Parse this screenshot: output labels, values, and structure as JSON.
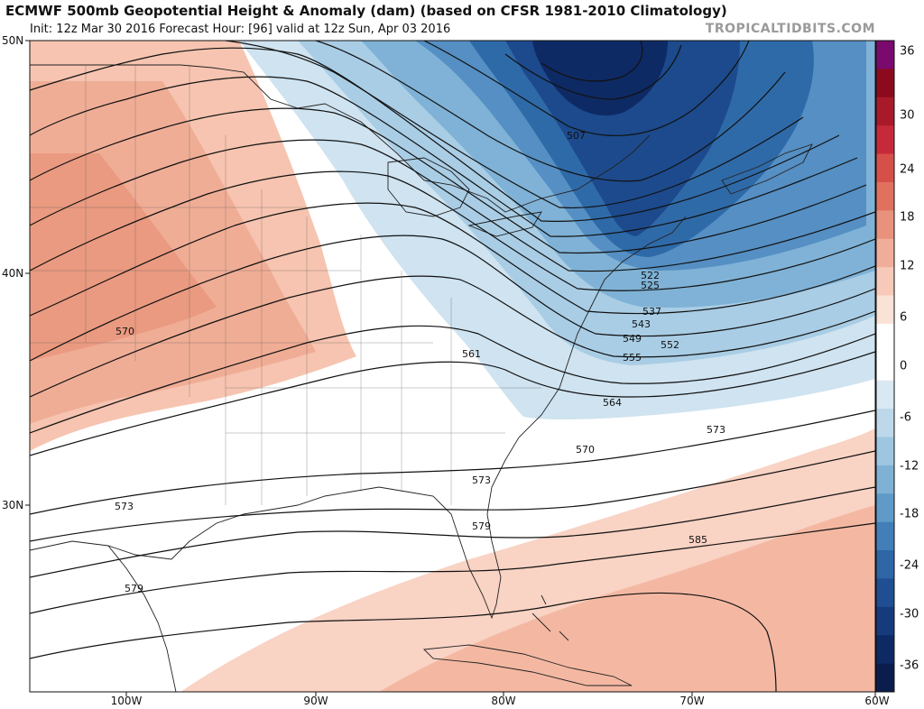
{
  "header": {
    "title": "ECMWF 500mb Geopotential Height & Anomaly (dam) (based on CFSR 1981-2010 Climatology)",
    "subtitle": "Init: 12z Mar 30 2016   Forecast Hour: [96]   valid at 12z Sun, Apr 03 2016",
    "credit": "TROPICALTIDBITS.COM"
  },
  "map": {
    "lat_labels": [
      "50N",
      "40N",
      "30N"
    ],
    "lon_labels": [
      "100W",
      "90W",
      "80W",
      "70W",
      "60W"
    ],
    "contour_labels": [
      "507",
      "522",
      "525",
      "537",
      "543",
      "549",
      "552",
      "555",
      "561",
      "564",
      "570",
      "570",
      "573",
      "573",
      "573",
      "579",
      "579",
      "585"
    ]
  },
  "colorbar": {
    "labels": [
      "36",
      "30",
      "24",
      "18",
      "12",
      "6",
      "0",
      "-6",
      "-12",
      "-18",
      "-24",
      "-30",
      "-36"
    ],
    "colors": [
      "#7a0a6e",
      "#8b0a1e",
      "#a81a2a",
      "#c62a3a",
      "#d6504a",
      "#e0715f",
      "#e8917c",
      "#f0ae9a",
      "#f6c9b8",
      "#fbe2d6",
      "#ffffff",
      "#ffffff",
      "#d9e9f3",
      "#bcd8ea",
      "#9ec6e1",
      "#7fb1d5",
      "#5f9ac8",
      "#427fb8",
      "#2e66a6",
      "#1f4f92",
      "#153b7c",
      "#0e2a64",
      "#0a1d4d"
    ]
  }
}
